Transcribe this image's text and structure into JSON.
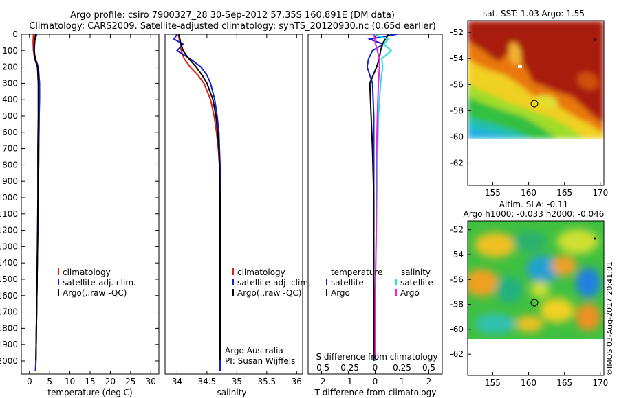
{
  "header": {
    "title_line1": "Argo profile: csiro 7900327_28 30-Sep-2012 57.35S 160.891E (DM data)",
    "title_line2": "Climatology: CARS2009. Satellite-adjusted climatology: synTS_20120930.nc (0.65d earlier)"
  },
  "colors": {
    "climatology": "#e02010",
    "satellite": "#1020d0",
    "argo": "#000000",
    "sal_satellite": "#20e0e0",
    "sal_argo": "#f020e0"
  },
  "legend": {
    "climatology": "climatology",
    "satellite": "satellite-adj. clim.",
    "argo": "Argo(..raw -QC)",
    "temperature": "temperature",
    "salinity": "salinity",
    "diff_satellite": "satellite",
    "diff_argo": "Argo"
  },
  "notes": {
    "org": "Argo Australia",
    "pi": "PI: Susan Wijffels"
  },
  "maps": {
    "sst_title": "sat. SST: 1.03 Argo: 1.55",
    "sla_title1": "Altim. SLA: -0.11",
    "sla_title2": "Argo h1000: -0.033 h2000: -0.046",
    "lat_ticks": [
      "-52",
      "-54",
      "-56",
      "-58",
      "-60",
      "-62"
    ],
    "lon_ticks": [
      "155",
      "160",
      "165",
      "170"
    ],
    "profile_lon": 160.891,
    "profile_lat": -57.35
  },
  "credit": "©IMOS 03-Aug-2017 20:41:01",
  "chart_data": [
    {
      "type": "line",
      "xlabel": "temperature (deg C)",
      "ylabel": "",
      "xlim": [
        -2,
        32
      ],
      "ylim": [
        2080,
        0
      ],
      "x_ticks": [
        "0",
        "5",
        "10",
        "15",
        "20",
        "25",
        "30"
      ],
      "y_ticks": [
        "0",
        "100",
        "200",
        "300",
        "400",
        "500",
        "600",
        "700",
        "800",
        "900",
        "1000",
        "1100",
        "1200",
        "1300",
        "1400",
        "1500",
        "1600",
        "1700",
        "1800",
        "1900",
        "2000"
      ],
      "series": [
        {
          "name": "climatology",
          "depth": [
            0,
            50,
            100,
            150,
            200,
            300,
            400,
            500,
            700,
            1000,
            1500,
            2000,
            2060
          ],
          "values": [
            1.0,
            0.9,
            1.0,
            1.3,
            2.0,
            2.4,
            2.4,
            2.4,
            2.3,
            2.2,
            1.9,
            1.6,
            1.5
          ]
        },
        {
          "name": "satellite-adj. clim.",
          "depth": [
            0,
            50,
            100,
            150,
            200,
            300,
            400,
            500,
            700,
            1000,
            1500,
            2000,
            2060
          ],
          "values": [
            1.8,
            1.2,
            1.1,
            1.5,
            2.2,
            2.5,
            2.5,
            2.4,
            2.3,
            2.2,
            1.9,
            1.6,
            1.5
          ]
        },
        {
          "name": "Argo(..raw -QC)",
          "depth": [
            0,
            50,
            100,
            150,
            200,
            300,
            400,
            500,
            700,
            1000,
            1500,
            1990
          ],
          "values": [
            1.5,
            1.3,
            1.2,
            1.4,
            2.0,
            2.2,
            2.2,
            2.2,
            2.1,
            2.1,
            1.9,
            1.6
          ]
        }
      ]
    },
    {
      "type": "line",
      "xlabel": "salinity",
      "ylabel": "",
      "xlim": [
        33.8,
        36.1
      ],
      "ylim": [
        2080,
        0
      ],
      "x_ticks": [
        "34",
        "34.5",
        "35",
        "35.5",
        "36"
      ],
      "series": [
        {
          "name": "climatology",
          "depth": [
            0,
            50,
            100,
            150,
            200,
            250,
            300,
            400,
            500,
            600,
            700,
            800,
            1000,
            1500,
            2000,
            2060
          ],
          "values": [
            34.02,
            34.05,
            34.07,
            34.12,
            34.22,
            34.35,
            34.45,
            34.56,
            34.62,
            34.66,
            34.69,
            34.71,
            34.72,
            34.72,
            34.72,
            34.72
          ]
        },
        {
          "name": "satellite-adj. clim.",
          "depth": [
            0,
            30,
            60,
            100,
            150,
            200,
            250,
            300,
            400,
            500,
            600,
            700,
            800,
            1000,
            1500,
            2000,
            2060
          ],
          "values": [
            34.0,
            33.95,
            34.1,
            34.0,
            34.22,
            34.4,
            34.5,
            34.56,
            34.63,
            34.67,
            34.7,
            34.71,
            34.72,
            34.72,
            34.72,
            34.72,
            34.72
          ]
        },
        {
          "name": "Argo(..raw -QC)",
          "depth": [
            0,
            50,
            100,
            150,
            200,
            250,
            300,
            400,
            500,
            600,
            700,
            800,
            1000,
            1500,
            1990
          ],
          "values": [
            34.03,
            34.06,
            34.1,
            34.2,
            34.32,
            34.42,
            34.5,
            34.6,
            34.65,
            34.68,
            34.7,
            34.71,
            34.72,
            34.72,
            34.72
          ]
        }
      ]
    },
    {
      "type": "line",
      "xlabel": "T difference from climatology",
      "x2label": "S difference from climatology",
      "ylabel": "",
      "xlim": [
        -2.5,
        2.5
      ],
      "x2lim": [
        -0.625,
        0.625
      ],
      "ylim": [
        2080,
        0
      ],
      "x_ticks": [
        "-2",
        "-1",
        "0",
        "1",
        "2"
      ],
      "x2_ticks": [
        "-0.5",
        "-0.25",
        "0",
        "0.25",
        "0.5"
      ],
      "series": [
        {
          "name": "temperature satellite",
          "depth": [
            0,
            30,
            60,
            100,
            150,
            200,
            300,
            500,
            700,
            1000,
            1500,
            2000
          ],
          "values": [
            0.8,
            -0.2,
            0.3,
            -0.1,
            -0.25,
            -0.3,
            -0.1,
            -0.05,
            -0.05,
            -0.05,
            -0.05,
            -0.05
          ]
        },
        {
          "name": "temperature Argo",
          "depth": [
            0,
            50,
            100,
            150,
            200,
            300,
            500,
            700,
            1000,
            1500,
            1990
          ],
          "values": [
            0.5,
            0.3,
            0.2,
            0.15,
            0.05,
            -0.2,
            -0.15,
            -0.1,
            -0.05,
            -0.05,
            -0.05
          ]
        },
        {
          "name": "salinity satellite",
          "depth": [
            0,
            30,
            60,
            100,
            150,
            200,
            300,
            500,
            800,
            1200,
            1600,
            2000
          ],
          "values": [
            -0.02,
            0.12,
            0.08,
            0.15,
            0.06,
            0.07,
            0.05,
            0.03,
            0.02,
            0.01,
            0.0,
            0.0
          ]
        },
        {
          "name": "salinity Argo",
          "depth": [
            0,
            50,
            100,
            150,
            200,
            300,
            500,
            800,
            1200,
            1600,
            1990
          ],
          "values": [
            -0.01,
            0.0,
            0.02,
            0.04,
            0.04,
            0.03,
            0.02,
            0.01,
            0.01,
            0.0,
            0.0
          ]
        }
      ]
    }
  ]
}
